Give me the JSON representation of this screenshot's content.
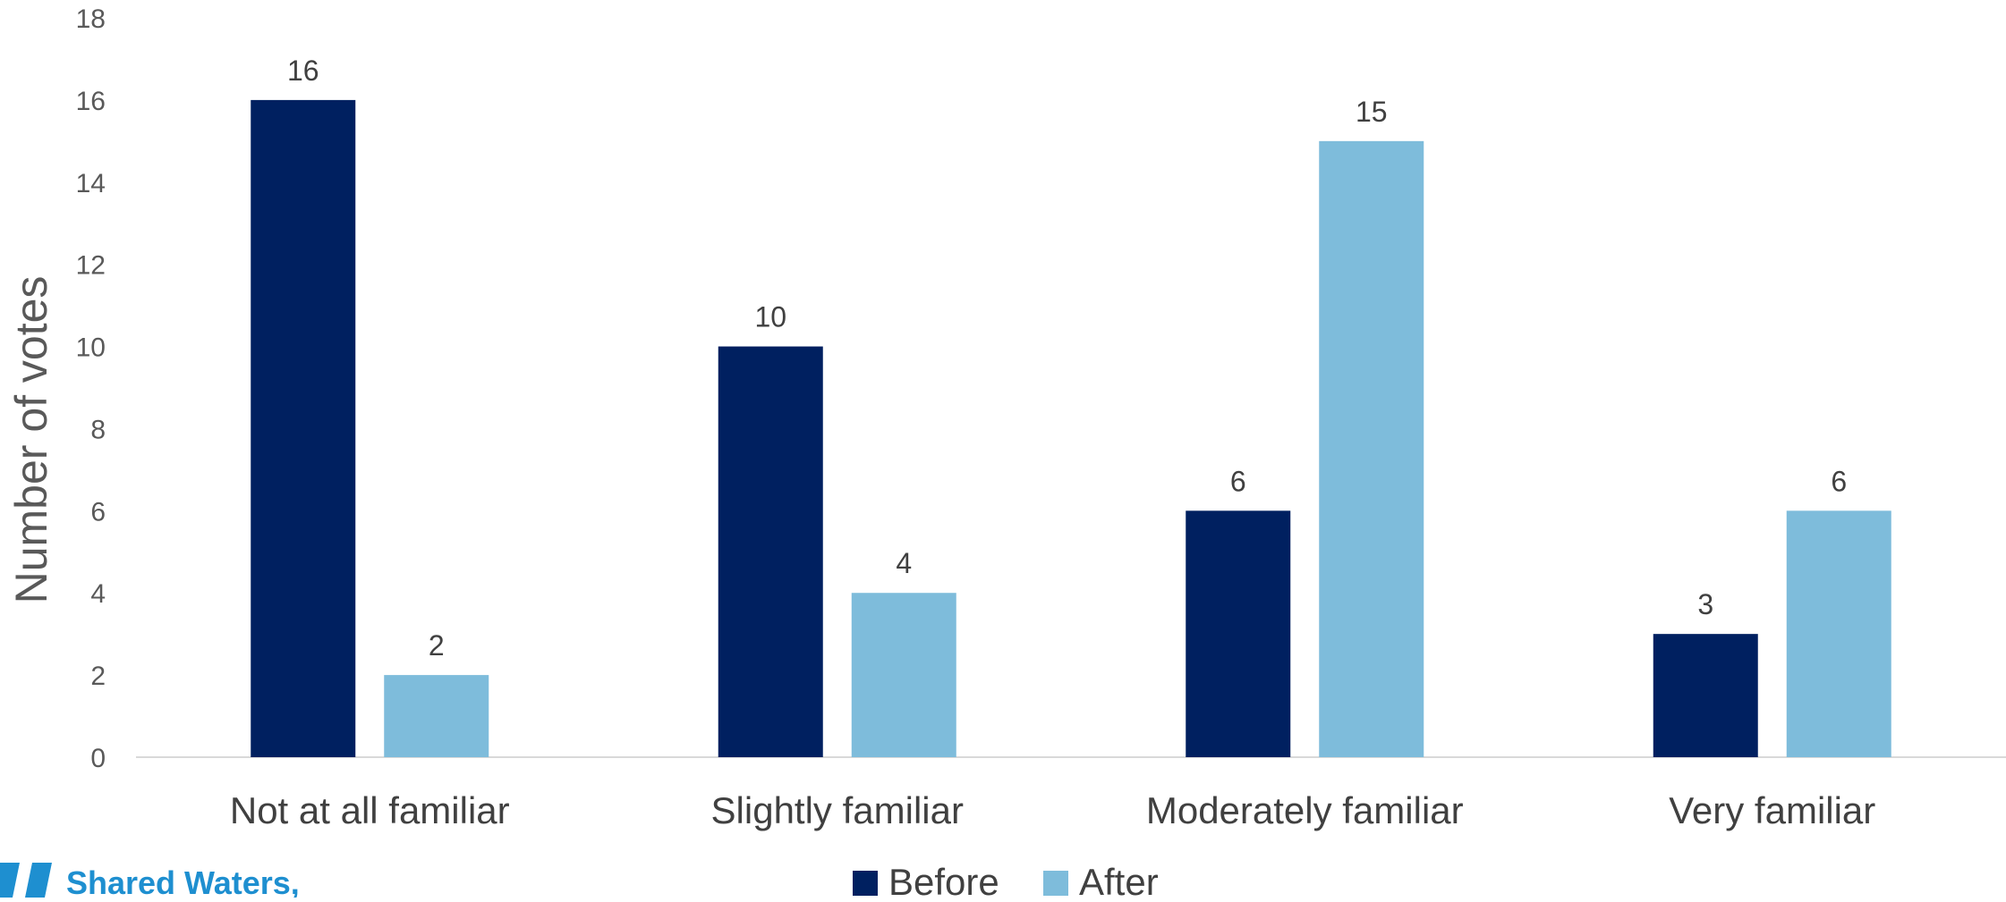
{
  "chart_data": {
    "type": "bar",
    "title": "",
    "xlabel": "",
    "ylabel": "Number of votes",
    "ylim": [
      0,
      18
    ],
    "yticks": [
      0,
      2,
      4,
      6,
      8,
      10,
      12,
      14,
      16,
      18
    ],
    "categories": [
      "Not at all familiar",
      "Slightly familiar",
      "Moderately familiar",
      "Very familiar"
    ],
    "series": [
      {
        "name": "Before",
        "values": [
          16,
          10,
          6,
          3
        ],
        "color": "#002060"
      },
      {
        "name": "After",
        "values": [
          2,
          4,
          15,
          6
        ],
        "color": "#7ebcdb"
      }
    ],
    "grid": false,
    "legend_position": "bottom-center",
    "data_labels": true
  },
  "logo": {
    "text": "Shared Waters,",
    "color": "#1e8fd0",
    "icon": "logo-mark-icon"
  }
}
